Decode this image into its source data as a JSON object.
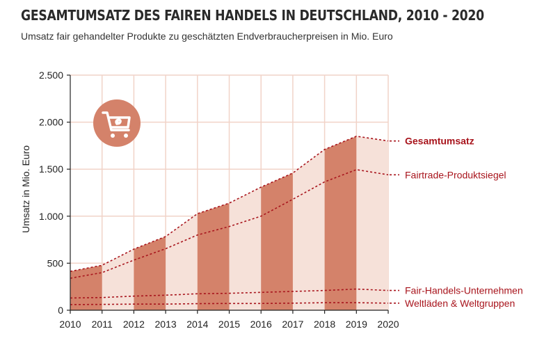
{
  "chart_data": {
    "type": "area",
    "title": "Gesamtumsatz des Fairen Handels in Deutschland, 2010 - 2020",
    "subtitle": "Umsatz fair gehandelter Produkte zu geschätzten Endverbraucherpreisen in Mio. Euro",
    "ylabel": "Umsatz in Mio. Euro",
    "xlabel": "",
    "ylim": [
      0,
      2500
    ],
    "yticks": [
      0,
      500,
      1000,
      1500,
      2000,
      2500
    ],
    "ytick_labels": [
      "0",
      "500",
      "1.000",
      "1.500",
      "2.000",
      "2.500"
    ],
    "x": [
      "2010",
      "2011",
      "2012",
      "2013",
      "2014",
      "2015",
      "2016",
      "2017",
      "2018",
      "2019",
      "2020"
    ],
    "series": [
      {
        "name": "Gesamtumsatz",
        "values": [
          413,
          478,
          650,
          784,
          1027,
          1139,
          1309,
          1459,
          1710,
          1850,
          1800
        ]
      },
      {
        "name": "Fairtrade-Produktsiegel",
        "values": [
          340,
          400,
          533,
          654,
          800,
          890,
          1000,
          1180,
          1365,
          1495,
          1440
        ]
      },
      {
        "name": "Fair-Handels-Unternehmen",
        "values": [
          130,
          135,
          150,
          160,
          175,
          180,
          190,
          200,
          210,
          225,
          210
        ]
      },
      {
        "name": "Weltläden & Weltgruppen",
        "values": [
          60,
          62,
          65,
          65,
          70,
          72,
          72,
          75,
          80,
          80,
          75
        ]
      }
    ],
    "grid": true,
    "legend": "right",
    "colors": {
      "area_light": "#f6e1d9",
      "area_dark": "#d4826a",
      "line": "#a8141c",
      "grid": "#f1d3c8",
      "icon_circle": "#d4826a"
    },
    "icon": "shopping-cart-icon"
  }
}
